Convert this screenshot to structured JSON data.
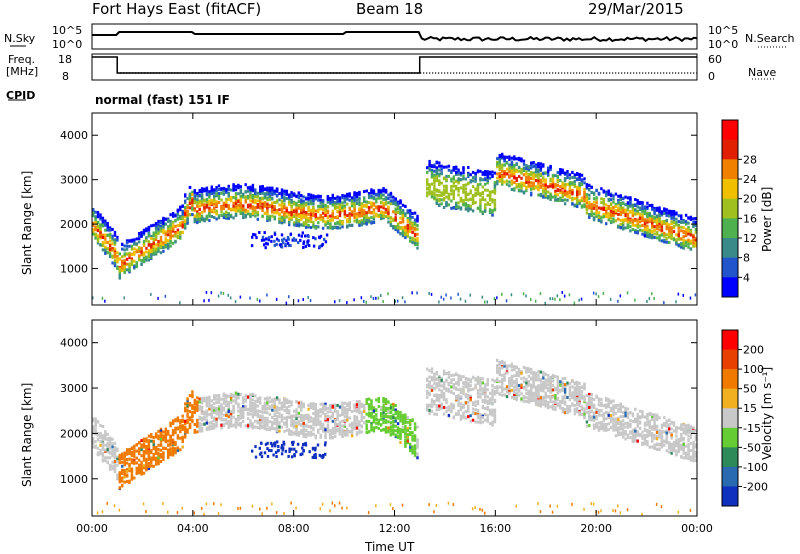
{
  "header": {
    "title": "Fort Hays East (fitACF)",
    "beam": "Beam 18",
    "date": "29/Mar/2015"
  },
  "top_panels": {
    "nsky_label": "N.Sky",
    "nsky_ticks": [
      "10^5",
      "10^0"
    ],
    "nsearch_label": "N.Search",
    "nsearch_ticks": [
      "10^5",
      "10^0"
    ],
    "freq_label_1": "Freq.",
    "freq_label_2": "[MHz]",
    "freq_ticks": [
      "18",
      "8"
    ],
    "nave_label": "Nave",
    "nave_ticks": [
      "60",
      "0"
    ],
    "cpid_label": "CPID",
    "cpid_text": "normal (fast) 151 IF"
  },
  "chart_data": [
    {
      "type": "heatmap",
      "title": "",
      "xlabel": "Time UT",
      "ylabel": "Slant Range [km]",
      "x_ticks": [
        "00:00",
        "04:00",
        "08:00",
        "12:00",
        "16:00",
        "20:00",
        "00:00"
      ],
      "y_ticks": [
        "1000",
        "2000",
        "3000",
        "4000"
      ],
      "ylim": [
        180,
        4500
      ],
      "colorbar_label": "Power [dB]",
      "colorbar_ticks": [
        "4",
        "8",
        "12",
        "16",
        "20",
        "24",
        "28"
      ],
      "colorbar_colors": [
        "#0000ff",
        "#2255cc",
        "#3a8a8a",
        "#4fb04f",
        "#a0c020",
        "#f0c000",
        "#f08000",
        "#e02000",
        "#ff0000"
      ]
    },
    {
      "type": "heatmap",
      "title": "",
      "xlabel": "Time UT",
      "ylabel": "Slant Range [km]",
      "x_ticks": [
        "00:00",
        "04:00",
        "08:00",
        "12:00",
        "16:00",
        "20:00",
        "00:00"
      ],
      "y_ticks": [
        "1000",
        "2000",
        "3000",
        "4000"
      ],
      "ylim": [
        180,
        4500
      ],
      "colorbar_label": "Velocity [m s⁻¹]",
      "colorbar_ticks": [
        "200",
        "100",
        "50",
        "15",
        "-15",
        "-50",
        "-100",
        "-200"
      ],
      "colorbar_colors": [
        "#1030c0",
        "#2a6ab0",
        "#2e8a58",
        "#66cc33",
        "#c8c8c8",
        "#f0b020",
        "#f07a00",
        "#e84000",
        "#ff0000"
      ]
    }
  ],
  "colors": {
    "frame": "#000000",
    "noise_grey": "#c8c8c8"
  }
}
